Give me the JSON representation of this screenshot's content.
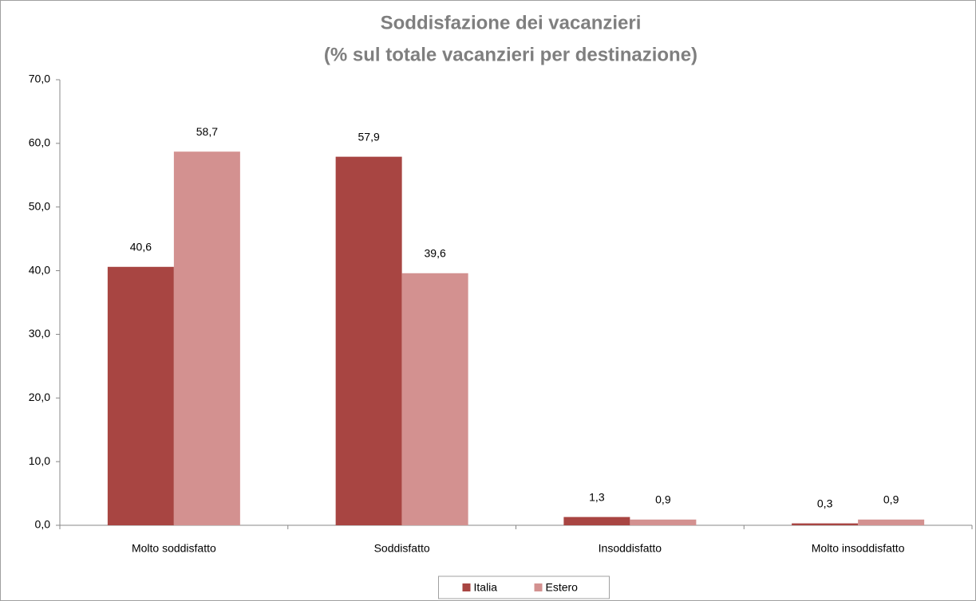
{
  "chart_data": {
    "type": "bar",
    "title": "Soddisfazione dei vacanzieri",
    "subtitle": "(% sul totale vacanzieri per destinazione)",
    "categories": [
      "Molto soddisfatto",
      "Soddisfatto",
      "Insoddisfatto",
      "Molto insoddisfatto"
    ],
    "series": [
      {
        "name": "Italia",
        "color": "#a84542",
        "values": [
          40.6,
          57.9,
          1.3,
          0.3
        ],
        "value_labels": [
          "40,6",
          "57,9",
          "1,3",
          "0,3"
        ]
      },
      {
        "name": "Estero",
        "color": "#d39190",
        "values": [
          58.7,
          39.6,
          0.9,
          0.9
        ],
        "value_labels": [
          "58,7",
          "39,6",
          "0,9",
          "0,9"
        ]
      }
    ],
    "ylim": [
      0,
      70
    ],
    "yticks": [
      {
        "value": 0,
        "label": "0,0"
      },
      {
        "value": 10,
        "label": "10,0"
      },
      {
        "value": 20,
        "label": "20,0"
      },
      {
        "value": 30,
        "label": "30,0"
      },
      {
        "value": 40,
        "label": "40,0"
      },
      {
        "value": 50,
        "label": "50,0"
      },
      {
        "value": 60,
        "label": "60,0"
      },
      {
        "value": 70,
        "label": "70,0"
      }
    ],
    "grid": false,
    "legend": "bottom"
  }
}
